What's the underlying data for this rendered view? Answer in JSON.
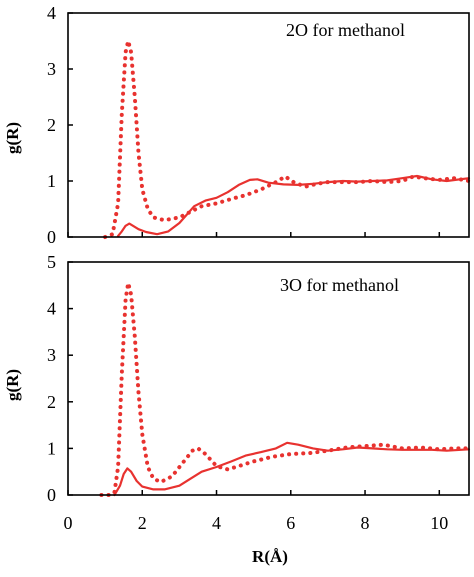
{
  "chart_data": [
    {
      "type": "line",
      "annotation": "2O for methanol",
      "ylabel": "g(R)",
      "xlabel": "",
      "xlim": [
        0,
        10.8
      ],
      "ylim": [
        0,
        4
      ],
      "yticks": [
        "0",
        "1",
        "2",
        "3",
        "4"
      ],
      "color": "#e8322f",
      "series": [
        {
          "style": "solid",
          "x": [
            1.35,
            1.45,
            1.55,
            1.65,
            1.75,
            1.9,
            2.1,
            2.4,
            2.7,
            3.0,
            3.2,
            3.4,
            3.7,
            4.0,
            4.3,
            4.6,
            4.9,
            5.1,
            5.4,
            5.8,
            6.2,
            6.6,
            7.0,
            7.4,
            7.8,
            8.2,
            8.6,
            9.0,
            9.4,
            9.8,
            10.2,
            10.8
          ],
          "y": [
            0.02,
            0.1,
            0.2,
            0.24,
            0.2,
            0.14,
            0.09,
            0.05,
            0.1,
            0.25,
            0.4,
            0.55,
            0.65,
            0.7,
            0.8,
            0.93,
            1.02,
            1.03,
            0.97,
            0.94,
            0.93,
            0.95,
            0.98,
            1.0,
            0.99,
            1.0,
            1.01,
            1.05,
            1.09,
            1.03,
            1.0,
            1.05
          ]
        },
        {
          "style": "dotted",
          "x": [
            1.0,
            1.2,
            1.35,
            1.45,
            1.55,
            1.62,
            1.7,
            1.8,
            1.9,
            2.0,
            2.15,
            2.3,
            2.6,
            3.0,
            3.3,
            3.6,
            4.0,
            4.4,
            4.8,
            5.2,
            5.6,
            5.85,
            6.1,
            6.4,
            6.7,
            7.0,
            7.4,
            7.8,
            8.2,
            8.6,
            9.0,
            9.3,
            9.6,
            10.0,
            10.4,
            10.8
          ],
          "y": [
            0.0,
            0.05,
            0.6,
            2.2,
            3.3,
            3.5,
            3.3,
            2.5,
            1.5,
            0.85,
            0.5,
            0.35,
            0.3,
            0.35,
            0.45,
            0.55,
            0.6,
            0.68,
            0.75,
            0.85,
            0.98,
            1.08,
            0.97,
            0.9,
            0.95,
            0.98,
            0.98,
            0.98,
            1.0,
            0.98,
            1.0,
            1.08,
            1.05,
            1.02,
            1.05,
            1.0
          ]
        }
      ]
    },
    {
      "type": "line",
      "annotation": "3O for methanol",
      "ylabel": "g(R)",
      "xlabel": "R(Å)",
      "xlim": [
        0,
        10.8
      ],
      "ylim": [
        0,
        5
      ],
      "yticks": [
        "0",
        "1",
        "2",
        "3",
        "4",
        "5"
      ],
      "xticks": [
        "0",
        "2",
        "4",
        "6",
        "8",
        "10"
      ],
      "color": "#e8322f",
      "series": [
        {
          "style": "solid",
          "x": [
            1.25,
            1.4,
            1.5,
            1.6,
            1.7,
            1.85,
            2.0,
            2.3,
            2.6,
            3.0,
            3.3,
            3.6,
            4.0,
            4.4,
            4.8,
            5.2,
            5.6,
            5.9,
            6.2,
            6.6,
            7.0,
            7.4,
            7.8,
            8.2,
            8.6,
            9.0,
            9.4,
            9.8,
            10.2,
            10.8
          ],
          "y": [
            0.0,
            0.2,
            0.45,
            0.57,
            0.5,
            0.3,
            0.18,
            0.12,
            0.12,
            0.2,
            0.35,
            0.5,
            0.6,
            0.72,
            0.85,
            0.92,
            1.0,
            1.12,
            1.08,
            1.0,
            0.95,
            0.98,
            1.02,
            1.0,
            0.98,
            0.97,
            0.97,
            0.97,
            0.95,
            0.98
          ]
        },
        {
          "style": "dotted",
          "x": [
            0.9,
            1.1,
            1.25,
            1.35,
            1.45,
            1.55,
            1.62,
            1.7,
            1.8,
            1.9,
            2.0,
            2.15,
            2.3,
            2.5,
            2.8,
            3.1,
            3.35,
            3.5,
            3.7,
            4.0,
            4.3,
            4.6,
            5.0,
            5.5,
            6.0,
            6.5,
            7.0,
            7.5,
            8.0,
            8.5,
            9.0,
            9.5,
            10.0,
            10.4,
            10.8
          ],
          "y": [
            0.0,
            0.0,
            0.05,
            0.6,
            2.6,
            4.2,
            4.55,
            4.3,
            3.4,
            2.2,
            1.3,
            0.6,
            0.35,
            0.28,
            0.4,
            0.7,
            0.95,
            1.0,
            0.88,
            0.62,
            0.55,
            0.62,
            0.72,
            0.82,
            0.88,
            0.9,
            0.95,
            1.02,
            1.05,
            1.08,
            1.0,
            1.02,
            0.98,
            1.0,
            1.0
          ]
        }
      ]
    }
  ]
}
